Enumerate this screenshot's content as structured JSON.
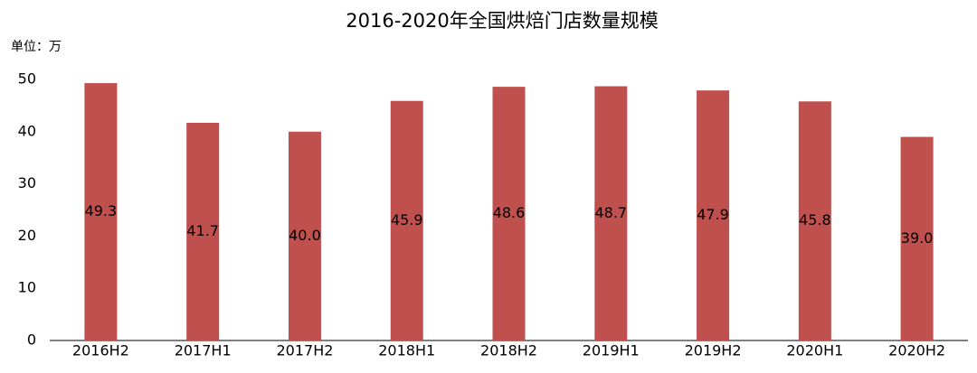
{
  "chart_data": {
    "type": "bar",
    "title": "2016-2020年全国烘焙门店数量规模",
    "unit_label": "单位：万",
    "categories": [
      "2016H2",
      "2017H1",
      "2017H2",
      "2018H1",
      "2018H2",
      "2019H1",
      "2019H2",
      "2020H1",
      "2020H2"
    ],
    "values": [
      49.3,
      41.7,
      40.0,
      45.9,
      48.6,
      48.7,
      47.9,
      45.8,
      39.0
    ],
    "value_labels": [
      "49.3",
      "41.7",
      "40.0",
      "45.9",
      "48.6",
      "48.7",
      "47.9",
      "45.8",
      "39.0"
    ],
    "color": "#c0504d",
    "ylim": [
      0,
      50
    ],
    "yticks": [
      0,
      10,
      20,
      30,
      40,
      50
    ],
    "grid": false
  }
}
